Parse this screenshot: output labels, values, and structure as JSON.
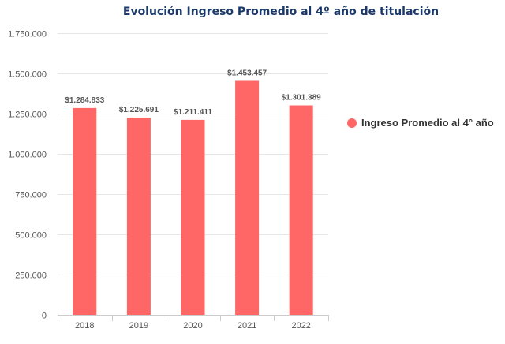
{
  "chart_data": {
    "type": "bar",
    "title": "Evolución Ingreso Promedio al 4º año de titulación",
    "categories": [
      "2018",
      "2019",
      "2020",
      "2021",
      "2022"
    ],
    "series": [
      {
        "name": "Ingreso Promedio al 4° año",
        "values": [
          1284833,
          1225691,
          1211411,
          1453457,
          1301389
        ],
        "data_labels": [
          "$1.284.833",
          "$1.225.691",
          "$1.211.411",
          "$1.453.457",
          "$1.301.389"
        ],
        "color": "#ff6666"
      }
    ],
    "ylim": [
      0,
      1750000
    ],
    "yticks": [
      0,
      250000,
      500000,
      750000,
      1000000,
      1250000,
      1500000,
      1750000
    ],
    "ytick_labels": [
      "0",
      "250.000",
      "500.000",
      "750.000",
      "1.000.000",
      "1.250.000",
      "1.500.000",
      "1.750.000"
    ],
    "grid": true,
    "legend_position": "right"
  }
}
